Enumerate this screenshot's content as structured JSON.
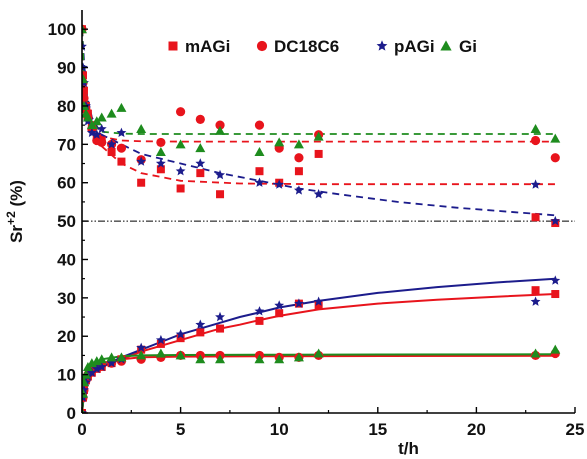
{
  "chart_data": {
    "type": "scatter",
    "title": "",
    "xlabel": "t/h",
    "ylabel": "Sr+2 (%)",
    "ylabel_base": "Sr",
    "ylabel_sup": "+2",
    "ylabel_unit": " (%)",
    "xlim": [
      0,
      25
    ],
    "ylim": [
      0,
      105
    ],
    "x_ticks": [
      0,
      5,
      10,
      15,
      20,
      25
    ],
    "y_ticks": [
      0,
      10,
      20,
      30,
      40,
      50,
      60,
      70,
      80,
      90,
      100
    ],
    "grid": false,
    "legend_position": "top-right",
    "reference_line": {
      "y": 50,
      "style": "dash-dot",
      "color": "#000000"
    },
    "series": [
      {
        "name": "mAGi",
        "marker": "square",
        "color": "#e8141c",
        "fit": "dashed",
        "fit_curve": "desorption",
        "desorption_points": [
          [
            0,
            100
          ],
          [
            0.05,
            88
          ],
          [
            0.1,
            84
          ],
          [
            0.2,
            80
          ],
          [
            0.3,
            78
          ],
          [
            0.5,
            75
          ],
          [
            0.75,
            72
          ],
          [
            1,
            71
          ],
          [
            1.5,
            68
          ],
          [
            2,
            65.5
          ],
          [
            3,
            60
          ],
          [
            4,
            63.5
          ],
          [
            5,
            58.5
          ],
          [
            6,
            62.5
          ],
          [
            7,
            57
          ],
          [
            9,
            63
          ],
          [
            10,
            60
          ],
          [
            11,
            63
          ],
          [
            12,
            67.5
          ],
          [
            23,
            51
          ],
          [
            24,
            49.5
          ]
        ],
        "uptake_points": [
          [
            0,
            0
          ],
          [
            0.05,
            4
          ],
          [
            0.1,
            6
          ],
          [
            0.2,
            8.5
          ],
          [
            0.3,
            9.5
          ],
          [
            0.5,
            10.5
          ],
          [
            0.75,
            11.5
          ],
          [
            1,
            12
          ],
          [
            1.5,
            13
          ],
          [
            2,
            14
          ],
          [
            3,
            16.5
          ],
          [
            4,
            18
          ],
          [
            5,
            19.5
          ],
          [
            6,
            21
          ],
          [
            7,
            22
          ],
          [
            9,
            24
          ],
          [
            10,
            26
          ],
          [
            11,
            28.5
          ],
          [
            12,
            28
          ],
          [
            23,
            32
          ],
          [
            24,
            31
          ]
        ],
        "fit_points_desorption": [
          [
            0,
            100
          ],
          [
            0.1,
            90
          ],
          [
            0.3,
            80
          ],
          [
            0.5,
            74
          ],
          [
            1,
            69.5
          ],
          [
            2,
            65
          ],
          [
            3,
            62.5
          ],
          [
            5,
            60.5
          ],
          [
            8,
            59.8
          ],
          [
            12,
            59.6
          ],
          [
            24,
            59.6
          ]
        ],
        "fit_points_uptake": [
          [
            0,
            0
          ],
          [
            0.1,
            5
          ],
          [
            0.3,
            8.5
          ],
          [
            0.6,
            10.5
          ],
          [
            1,
            12
          ],
          [
            2,
            14
          ],
          [
            3,
            16
          ],
          [
            4,
            17.5
          ],
          [
            5,
            19
          ],
          [
            6,
            20.5
          ],
          [
            7,
            22
          ],
          [
            8,
            23
          ],
          [
            9,
            24.2
          ],
          [
            10,
            25.3
          ],
          [
            12,
            27
          ],
          [
            15,
            28.5
          ],
          [
            18,
            29.5
          ],
          [
            21,
            30.3
          ],
          [
            24,
            31
          ]
        ]
      },
      {
        "name": "DC18C6",
        "marker": "circle",
        "color": "#e8141c",
        "fit": "dashed",
        "fit_curve": "desorption",
        "desorption_points": [
          [
            0,
            100
          ],
          [
            0.05,
            86
          ],
          [
            0.1,
            82
          ],
          [
            0.2,
            79
          ],
          [
            0.3,
            77
          ],
          [
            0.5,
            74
          ],
          [
            0.75,
            71
          ],
          [
            1,
            70.5
          ],
          [
            1.5,
            70
          ],
          [
            2,
            69
          ],
          [
            3,
            66
          ],
          [
            4,
            70.5
          ],
          [
            5,
            78.5
          ],
          [
            6,
            76.5
          ],
          [
            7,
            75
          ],
          [
            9,
            75
          ],
          [
            10,
            69
          ],
          [
            11,
            66.5
          ],
          [
            12,
            72.5
          ],
          [
            23,
            71
          ],
          [
            24,
            66.5
          ]
        ],
        "uptake_points": [
          [
            0,
            0
          ],
          [
            0.05,
            4
          ],
          [
            0.1,
            6
          ],
          [
            0.2,
            8.5
          ],
          [
            0.3,
            10
          ],
          [
            0.5,
            11
          ],
          [
            0.75,
            12
          ],
          [
            1,
            12.5
          ],
          [
            1.5,
            13
          ],
          [
            2,
            13.5
          ],
          [
            3,
            14
          ],
          [
            4,
            14.5
          ],
          [
            5,
            15
          ],
          [
            6,
            15
          ],
          [
            7,
            15
          ],
          [
            9,
            15
          ],
          [
            10,
            14.5
          ],
          [
            11,
            14.5
          ],
          [
            12,
            15
          ],
          [
            23,
            15
          ],
          [
            24,
            15.5
          ]
        ],
        "fit_points_desorption": [
          [
            0,
            100
          ],
          [
            0.1,
            88
          ],
          [
            0.3,
            80
          ],
          [
            0.5,
            75.5
          ],
          [
            1,
            72
          ],
          [
            2,
            71
          ],
          [
            3,
            70.8
          ],
          [
            5,
            70.7
          ],
          [
            10,
            70.7
          ],
          [
            24,
            70.7
          ]
        ],
        "fit_points_uptake": [
          [
            0,
            0
          ],
          [
            0.1,
            5
          ],
          [
            0.3,
            9
          ],
          [
            0.6,
            11.5
          ],
          [
            1,
            13
          ],
          [
            2,
            14
          ],
          [
            3,
            14.5
          ],
          [
            5,
            14.7
          ],
          [
            10,
            14.8
          ],
          [
            24,
            14.9
          ]
        ]
      },
      {
        "name": "pAGi",
        "marker": "star",
        "color": "#1c1c8c",
        "fit": "dashed",
        "fit_curve": "desorption",
        "desorption_points": [
          [
            0,
            95.5
          ],
          [
            0.05,
            90
          ],
          [
            0.1,
            86
          ],
          [
            0.2,
            80
          ],
          [
            0.3,
            76
          ],
          [
            0.5,
            73
          ],
          [
            0.75,
            72.5
          ],
          [
            1,
            74
          ],
          [
            1.5,
            70
          ],
          [
            2,
            73
          ],
          [
            3,
            65.5
          ],
          [
            4,
            65
          ],
          [
            5,
            63
          ],
          [
            6,
            65
          ],
          [
            7,
            62
          ],
          [
            9,
            60
          ],
          [
            10,
            59.5
          ],
          [
            11,
            58
          ],
          [
            12,
            57
          ],
          [
            23,
            59.5
          ],
          [
            24,
            50
          ]
        ],
        "uptake_points": [
          [
            0,
            0
          ],
          [
            0.05,
            4
          ],
          [
            0.1,
            6
          ],
          [
            0.2,
            8
          ],
          [
            0.3,
            9.5
          ],
          [
            0.5,
            10.5
          ],
          [
            0.75,
            11.5
          ],
          [
            1,
            12
          ],
          [
            1.5,
            13
          ],
          [
            2,
            14
          ],
          [
            3,
            17
          ],
          [
            4,
            19
          ],
          [
            5,
            20.5
          ],
          [
            6,
            23
          ],
          [
            7,
            25
          ],
          [
            9,
            26.5
          ],
          [
            10,
            28
          ],
          [
            11,
            28.5
          ],
          [
            12,
            29
          ],
          [
            23,
            29
          ],
          [
            24,
            34.5
          ]
        ],
        "fit_points_desorption": [
          [
            0,
            100
          ],
          [
            0.2,
            84
          ],
          [
            0.5,
            77
          ],
          [
            1,
            72.5
          ],
          [
            2,
            70
          ],
          [
            3,
            67.5
          ],
          [
            5,
            65
          ],
          [
            7,
            62.5
          ],
          [
            9,
            60.5
          ],
          [
            11,
            58.5
          ],
          [
            13,
            57
          ],
          [
            16,
            55
          ],
          [
            19,
            53.5
          ],
          [
            22,
            52.3
          ],
          [
            24,
            51.5
          ]
        ],
        "fit_points_uptake": [
          [
            0,
            0
          ],
          [
            0.1,
            5
          ],
          [
            0.3,
            8.5
          ],
          [
            0.6,
            10.8
          ],
          [
            1,
            12
          ],
          [
            2,
            14.5
          ],
          [
            3,
            16.5
          ],
          [
            4,
            18.5
          ],
          [
            5,
            20.5
          ],
          [
            6,
            22
          ],
          [
            7,
            23.5
          ],
          [
            8,
            25
          ],
          [
            9,
            26.2
          ],
          [
            10,
            27.5
          ],
          [
            12,
            29.2
          ],
          [
            15,
            31.3
          ],
          [
            18,
            32.8
          ],
          [
            21,
            34
          ],
          [
            24,
            35
          ]
        ]
      },
      {
        "name": "Gi",
        "marker": "triangle",
        "color": "#1e8c1e",
        "fit": "dashed",
        "fit_curve": "desorption",
        "desorption_points": [
          [
            0,
            100
          ],
          [
            0.05,
            87
          ],
          [
            0.1,
            80
          ],
          [
            0.2,
            78
          ],
          [
            0.3,
            77
          ],
          [
            0.5,
            75
          ],
          [
            0.75,
            76
          ],
          [
            1,
            77
          ],
          [
            1.5,
            78
          ],
          [
            2,
            79.5
          ],
          [
            3,
            74
          ],
          [
            4,
            68
          ],
          [
            5,
            70
          ],
          [
            6,
            69
          ],
          [
            7,
            73.5
          ],
          [
            9,
            68
          ],
          [
            10,
            70.5
          ],
          [
            11,
            70
          ],
          [
            12,
            72
          ],
          [
            23,
            74
          ],
          [
            24,
            71.5
          ]
        ],
        "uptake_points": [
          [
            0,
            0
          ],
          [
            0.05,
            5
          ],
          [
            0.1,
            8
          ],
          [
            0.2,
            10
          ],
          [
            0.3,
            12
          ],
          [
            0.5,
            13
          ],
          [
            0.75,
            13.5
          ],
          [
            1,
            14
          ],
          [
            1.5,
            14.5
          ],
          [
            2,
            14.5
          ],
          [
            3,
            15
          ],
          [
            4,
            15.5
          ],
          [
            5,
            15
          ],
          [
            6,
            14
          ],
          [
            7,
            14
          ],
          [
            9,
            14
          ],
          [
            10,
            14
          ],
          [
            11,
            14.5
          ],
          [
            12,
            15.5
          ],
          [
            23,
            15.5
          ],
          [
            24,
            16.5
          ]
        ],
        "fit_points_desorption": [
          [
            0,
            100
          ],
          [
            0.1,
            88
          ],
          [
            0.3,
            79
          ],
          [
            0.5,
            75.5
          ],
          [
            1,
            73.3
          ],
          [
            2,
            72.8
          ],
          [
            3,
            72.7
          ],
          [
            5,
            72.7
          ],
          [
            10,
            72.7
          ],
          [
            24,
            72.7
          ]
        ],
        "fit_points_uptake": [
          [
            0,
            0
          ],
          [
            0.1,
            6
          ],
          [
            0.3,
            10.5
          ],
          [
            0.6,
            12.8
          ],
          [
            1,
            14
          ],
          [
            2,
            14.8
          ],
          [
            3,
            15
          ],
          [
            5,
            15.1
          ],
          [
            10,
            15.2
          ],
          [
            24,
            15.3
          ]
        ]
      }
    ]
  }
}
